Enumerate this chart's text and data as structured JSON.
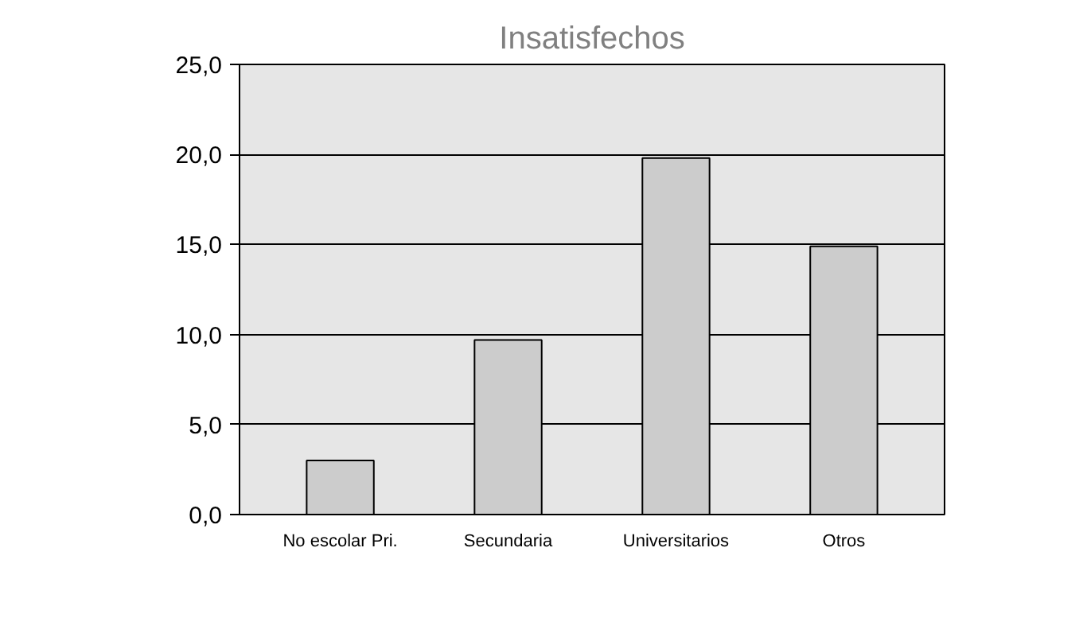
{
  "chart_data": {
    "type": "bar",
    "title": "Insatisfechos",
    "categories": [
      "No escolar Pri.",
      "Secundaria",
      "Universitarios",
      "Otros"
    ],
    "values": [
      3.0,
      9.7,
      19.8,
      14.9
    ],
    "color": "#cccccc",
    "ylim": [
      0,
      25
    ],
    "yticks": [
      {
        "value": 0,
        "label": "0,0"
      },
      {
        "value": 5,
        "label": "5,0"
      },
      {
        "value": 10,
        "label": "10,0"
      },
      {
        "value": 15,
        "label": "15,0"
      },
      {
        "value": 20,
        "label": "20,0"
      },
      {
        "value": 25,
        "label": "25,0"
      }
    ],
    "grid": "y"
  }
}
